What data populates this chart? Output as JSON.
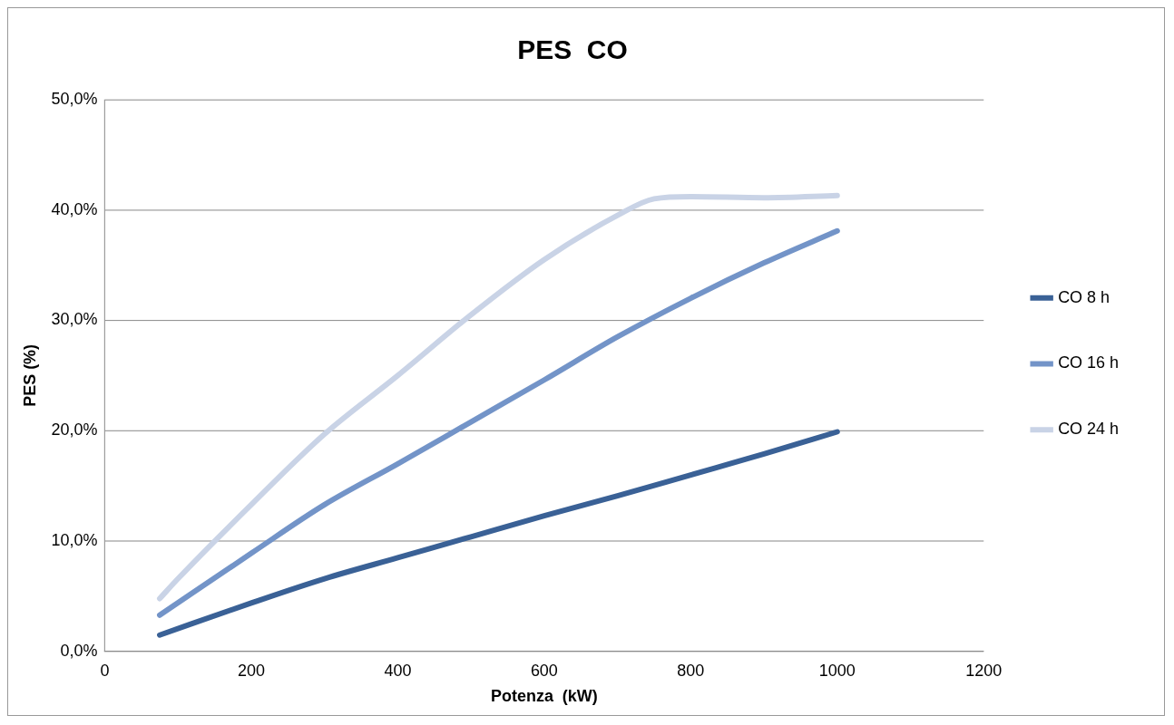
{
  "chart_data": {
    "type": "line",
    "title": "PES  CO",
    "xlabel": "Potenza  (kW)",
    "ylabel": "PES (%)",
    "xlim": [
      0,
      1200
    ],
    "xticks": [
      0,
      200,
      400,
      600,
      800,
      1000,
      1200
    ],
    "ylim": [
      0,
      50
    ],
    "yticks": [
      {
        "value": 0,
        "label": "0,0%"
      },
      {
        "value": 10,
        "label": "10,0%"
      },
      {
        "value": 20,
        "label": "20,0%"
      },
      {
        "value": 30,
        "label": "30,0%"
      },
      {
        "value": 40,
        "label": "40,0%"
      },
      {
        "value": 50,
        "label": "50,0%"
      }
    ],
    "grid": "y",
    "legend": "right",
    "marker": "none",
    "line_style": "solid",
    "series": [
      {
        "name": "CO 8 h",
        "color": "#3a6196",
        "x": [
          75,
          200,
          300,
          400,
          500,
          600,
          700,
          800,
          900,
          1000
        ],
        "values": [
          1.5,
          4.4,
          6.6,
          8.5,
          10.4,
          12.3,
          14.1,
          16.0,
          17.9,
          19.9
        ]
      },
      {
        "name": "CO 16 h",
        "color": "#7394c8",
        "x": [
          75,
          200,
          300,
          400,
          500,
          600,
          700,
          800,
          900,
          1000
        ],
        "values": [
          3.3,
          8.9,
          13.3,
          17.0,
          20.8,
          24.6,
          28.5,
          32.0,
          35.2,
          38.1
        ]
      },
      {
        "name": "CO 24 h",
        "color": "#c9d3e6",
        "x": [
          75,
          100,
          200,
          300,
          400,
          500,
          600,
          700,
          750,
          800,
          900,
          1000
        ],
        "values": [
          4.8,
          6.6,
          13.3,
          19.7,
          25.0,
          30.5,
          35.5,
          39.5,
          41.0,
          41.2,
          41.1,
          41.3
        ]
      }
    ]
  }
}
